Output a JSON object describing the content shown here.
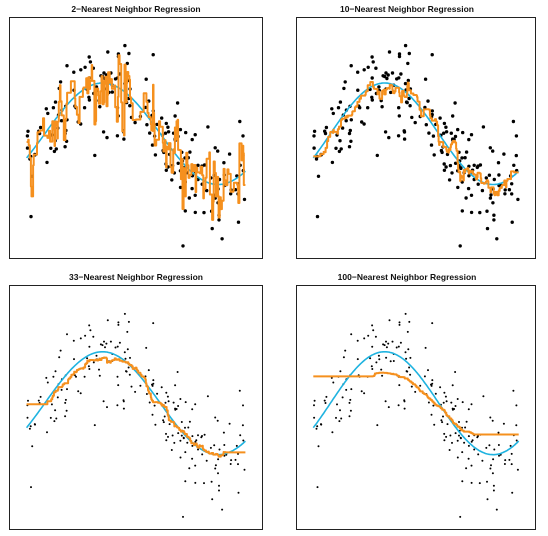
{
  "colors": {
    "truth": "#1fb3e0",
    "fit": "#f5901e",
    "points": "#000000"
  },
  "chart_data": [
    {
      "type": "scatter",
      "title": "2−Nearest Neighbor Regression",
      "k": 2,
      "xlim": [
        0,
        10
      ],
      "ylim": [
        -2.6,
        2.6
      ],
      "grid": false,
      "points_style": "large",
      "truth_curve": "sine",
      "fit_curve": "knn step fit with k = 2 neighbors"
    },
    {
      "type": "scatter",
      "title": "10−Nearest Neighbor Regression",
      "k": 10,
      "xlim": [
        0,
        10
      ],
      "ylim": [
        -2.6,
        2.6
      ],
      "grid": false,
      "points_style": "large",
      "truth_curve": "sine",
      "fit_curve": "knn step fit with k = 10 neighbors"
    },
    {
      "type": "scatter",
      "title": "33−Nearest Neighbor Regression",
      "k": 33,
      "xlim": [
        0,
        10
      ],
      "ylim": [
        -2.6,
        2.6
      ],
      "grid": false,
      "points_style": "small",
      "truth_curve": "sine",
      "fit_curve": "knn step fit with k = 33 neighbors"
    },
    {
      "type": "scatter",
      "title": "100−Nearest Neighbor Regression",
      "k": 100,
      "xlim": [
        0,
        10
      ],
      "ylim": [
        -2.6,
        2.6
      ],
      "grid": false,
      "points_style": "small",
      "truth_curve": "sine",
      "fit_curve": "knn step fit with k = 100 neighbors"
    }
  ]
}
